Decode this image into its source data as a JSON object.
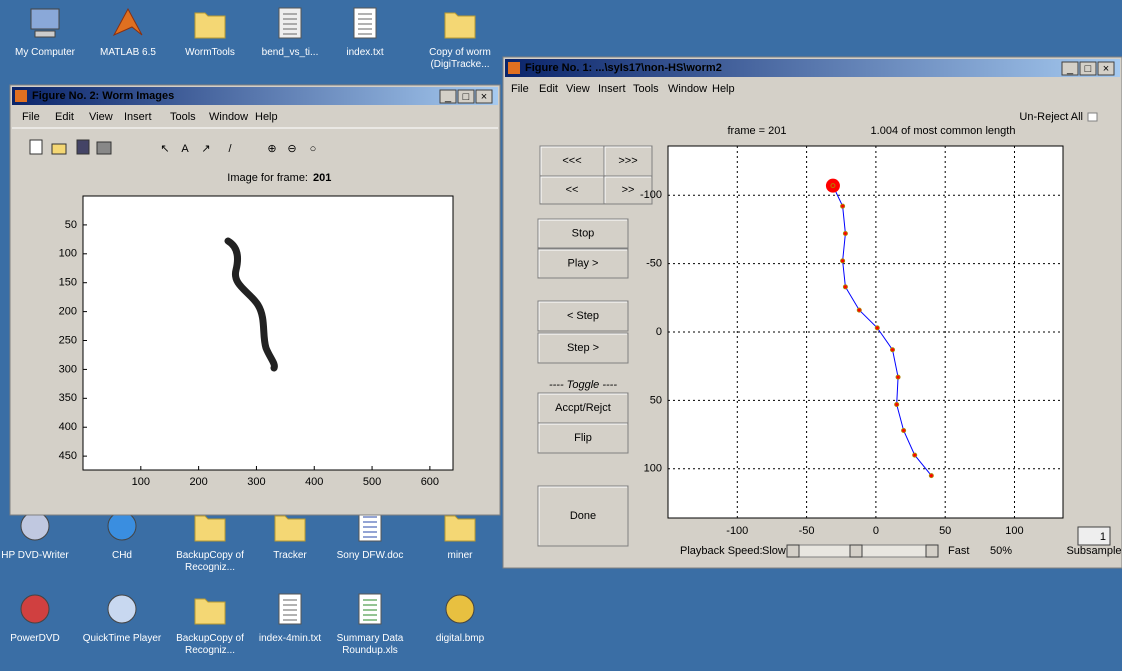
{
  "desktop": {
    "icons": [
      "My Computer",
      "MATLAB 6.5",
      "WormTools",
      "bend_vs_ti...",
      "index.txt",
      "Copy of worm (DigiTracke...",
      "HP DVD-Writer",
      "CHd",
      "BackupCopy of Recogniz...",
      "Tracker",
      "Sony DFW.doc",
      "miner",
      "PowerDVD",
      "QuickTime Player",
      "BackupCopy of Recogniz...",
      "index-4min.txt",
      "Summary Data Roundup.xls",
      "digital.bmp"
    ]
  },
  "figure2": {
    "title": "Figure No. 2: Worm Images",
    "menu": [
      "File",
      "Edit",
      "View",
      "Insert",
      "Tools",
      "Window",
      "Help"
    ],
    "image_title": "Image for frame:",
    "frame": 201,
    "xlim": [
      0,
      640
    ],
    "ylim": [
      0,
      474
    ],
    "xticks": [
      100,
      200,
      300,
      400,
      500,
      600
    ],
    "yticks": [
      50,
      100,
      150,
      200,
      250,
      300,
      350,
      400,
      450
    ]
  },
  "figure1": {
    "title": "Figure No. 1: ...\\syIs17\\non-HS\\worm2",
    "menu": [
      "File",
      "Edit",
      "View",
      "Insert",
      "Tools",
      "Window",
      "Help"
    ],
    "unreject": "Un-Reject All",
    "frame_label": "frame = 201",
    "length_label": "1.004 of most common length",
    "buttons": [
      "<<<",
      ">>>",
      "<<",
      ">>",
      "Stop",
      "Play >",
      "< Step",
      "Step >",
      "Accpt/Rejct",
      "Flip",
      "Done"
    ],
    "toggle_label": "---- Toggle ----",
    "plot": {
      "type": "line",
      "x": [
        -31,
        -24,
        -22,
        -24,
        -22,
        -12,
        1,
        12,
        16,
        15,
        20,
        28,
        40
      ],
      "y": [
        -107,
        -92,
        -72,
        -52,
        -33,
        -16,
        -3,
        13,
        33,
        53,
        72,
        90,
        105
      ],
      "xlim": [
        -150,
        135
      ],
      "ylim": [
        -136,
        136
      ],
      "y_direction": "reverse",
      "xticks": [
        -100,
        -50,
        0,
        50,
        100
      ],
      "yticks": [
        -100,
        -50,
        0,
        50,
        100
      ],
      "grid": true,
      "line_color": "#0000ff",
      "marker_color": "#ff0000"
    },
    "playback_label": "Playback Speed:",
    "slow": "Slow",
    "fast": "Fast",
    "speed": "50%",
    "subsample": 1,
    "subsample_label": "Subsample"
  }
}
